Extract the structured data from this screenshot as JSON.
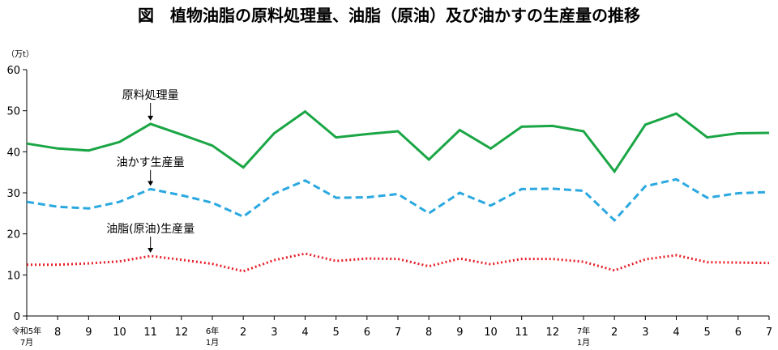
{
  "chart_data": {
    "type": "line",
    "title": "図　植物油脂の原料処理量、油脂（原油）及び油かすの生産量の推移",
    "unit": "（万t）",
    "ylim": [
      0,
      60
    ],
    "yticks": [
      0,
      10,
      20,
      30,
      40,
      50,
      60
    ],
    "x_labels": [
      "8",
      "9",
      "10",
      "11",
      "12",
      "2",
      "3",
      "4",
      "5",
      "6",
      "7",
      "8",
      "9",
      "10",
      "11",
      "12",
      "2",
      "3",
      "4",
      "5",
      "6",
      "7"
    ],
    "x_first_label": {
      "line1": "令和5年",
      "line2": "7月"
    },
    "x_year6_label": {
      "line1": "6年",
      "line2": "1月"
    },
    "x_year7_label": {
      "line1": "7年",
      "line2": "1月"
    },
    "grid": false,
    "series": [
      {
        "name": "原料処理量",
        "color": "#1aa645",
        "style": "solid",
        "values": [
          42,
          40.8,
          40.3,
          42.4,
          46.8,
          44.2,
          41.5,
          36.2,
          44.5,
          49.8,
          43.5,
          44.3,
          45,
          38.1,
          45.3,
          40.8,
          46.1,
          46.3,
          45,
          35.2,
          46.6,
          49.3,
          43.5,
          44.5,
          44.6
        ]
      },
      {
        "name": "油かす生産量",
        "color": "#2aa8e0",
        "style": "dashed",
        "values": [
          27.8,
          26.6,
          26.2,
          27.8,
          30.9,
          29.4,
          27.6,
          24.2,
          29.8,
          33,
          28.8,
          28.9,
          29.7,
          25,
          30,
          26.9,
          30.9,
          31,
          30.5,
          23.3,
          31.6,
          33.3,
          28.8,
          29.9,
          30.2
        ]
      },
      {
        "name": "油脂(原油)生産量",
        "color": "#e8202a",
        "style": "dotted",
        "values": [
          12.5,
          12.5,
          12.8,
          13.3,
          14.6,
          13.7,
          12.7,
          10.9,
          13.6,
          15.2,
          13.4,
          14,
          13.9,
          12.1,
          14,
          12.6,
          13.9,
          13.9,
          13.2,
          11.1,
          13.8,
          14.8,
          13.1,
          13,
          12.9
        ]
      }
    ]
  }
}
